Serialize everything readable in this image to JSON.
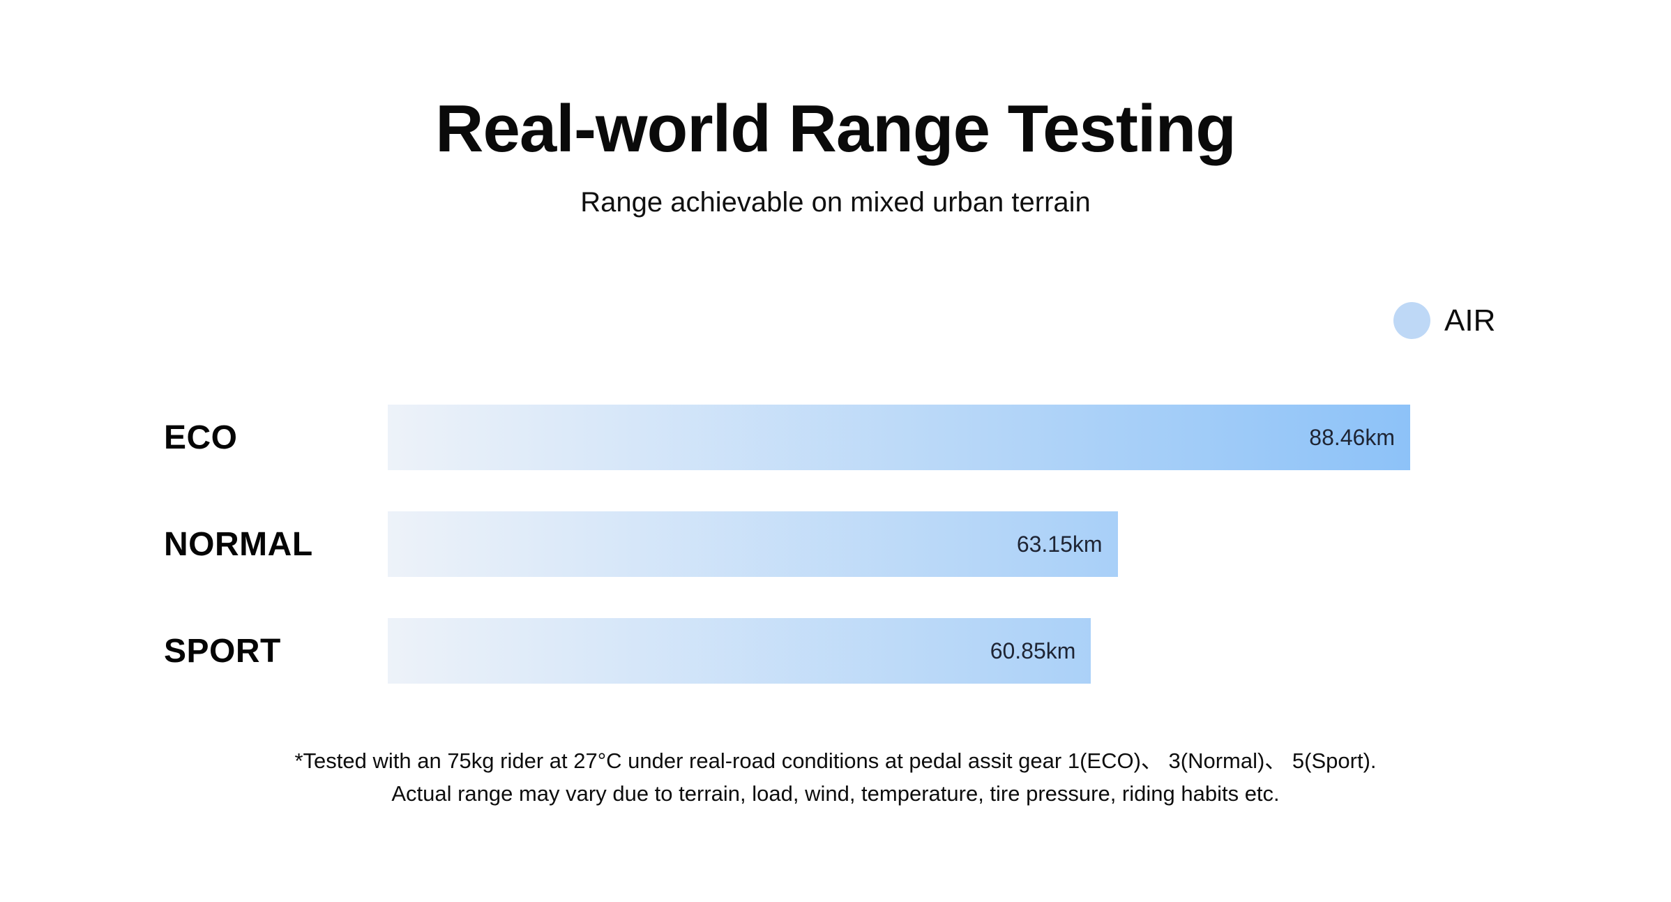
{
  "chart_data": {
    "type": "bar",
    "orientation": "horizontal",
    "title": "Real-world Range Testing",
    "subtitle": "Range achievable on mixed urban terrain",
    "legend": [
      {
        "label": "AIR",
        "color": "#bed8f6",
        "marker": "circle"
      }
    ],
    "legend_position": "top-right",
    "categories": [
      "ECO",
      "NORMAL",
      "SPORT"
    ],
    "series": [
      {
        "name": "AIR",
        "values": [
          88.46,
          63.15,
          60.85
        ]
      }
    ],
    "value_labels": [
      "88.46km",
      "63.15km",
      "60.85km"
    ],
    "unit": "km",
    "xlim": [
      0,
      88.46
    ],
    "grid": false,
    "axes_visible": false,
    "bar_gradient_start": "#edf2f9",
    "bar_gradient_end": "#8dc2f8",
    "footnote": {
      "line1": "*Tested with an 75kg rider at 27°C under real-road conditions at pedal assit gear 1(ECO)、 3(Normal)、 5(Sport).",
      "line2": "Actual range may vary due to terrain, load, wind, temperature, tire pressure, riding habits etc."
    }
  }
}
